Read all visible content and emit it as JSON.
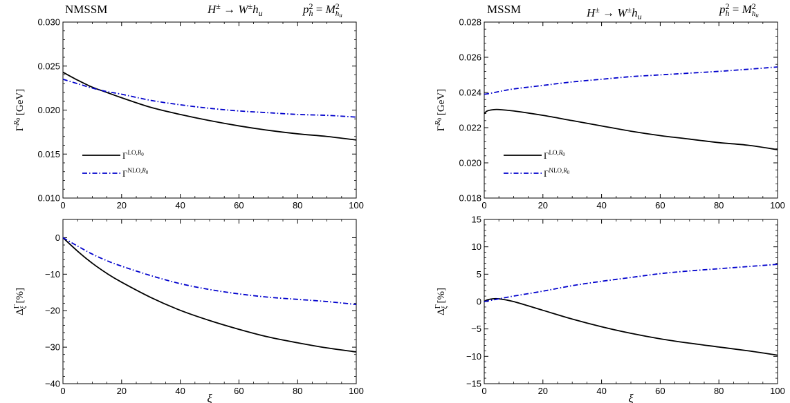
{
  "chart_data": [
    {
      "type": "line",
      "panel": "top-left",
      "title_left": "NMSSM",
      "title_center": "H^{±} → W^{±}h_u",
      "title_right": "p_h^2 = M_{h_u}^2",
      "ylabel": "Γ^{R_0} [GeV]",
      "xlabel": "",
      "xlim": [
        0,
        100
      ],
      "ylim": [
        0.01,
        0.03
      ],
      "xticks": [
        "0",
        "20",
        "40",
        "60",
        "80",
        "100"
      ],
      "yticks": [
        "0.010",
        "0.015",
        "0.020",
        "0.025",
        "0.030"
      ],
      "legend_position": "bottom-left",
      "x": [
        0,
        5,
        10,
        15,
        20,
        30,
        40,
        50,
        60,
        70,
        80,
        90,
        100
      ],
      "series": [
        {
          "name": "Γ^{LO,R_0}",
          "color": "#000000",
          "dash": "solid",
          "values": [
            0.0243,
            0.0234,
            0.0226,
            0.022,
            0.0214,
            0.0203,
            0.0195,
            0.0188,
            0.0182,
            0.0177,
            0.0173,
            0.017,
            0.0166
          ]
        },
        {
          "name": "Γ^{NLO,R_0}",
          "color": "#0000cc",
          "dash": "dashdot",
          "values": [
            0.0235,
            0.023,
            0.0225,
            0.0221,
            0.0218,
            0.0211,
            0.0206,
            0.0202,
            0.0199,
            0.0197,
            0.0195,
            0.0194,
            0.0192
          ]
        }
      ]
    },
    {
      "type": "line",
      "panel": "top-right",
      "title_left": "MSSM",
      "title_center": "H^{±} → W^{±}h_u",
      "title_right": "p_h^2 = M_{h_u}^2",
      "ylabel": "Γ^{R_0} [GeV]",
      "xlabel": "",
      "xlim": [
        0,
        100
      ],
      "ylim": [
        0.018,
        0.028
      ],
      "xticks": [
        "0",
        "20",
        "40",
        "60",
        "80",
        "100"
      ],
      "yticks": [
        "0.018",
        "0.020",
        "0.022",
        "0.024",
        "0.026",
        "0.028"
      ],
      "legend_position": "bottom-left",
      "x": [
        0,
        1,
        3,
        5,
        10,
        20,
        30,
        40,
        50,
        60,
        70,
        80,
        90,
        100
      ],
      "series": [
        {
          "name": "Γ^{LO,R_0}",
          "color": "#000000",
          "dash": "solid",
          "values": [
            0.0228,
            0.02295,
            0.02302,
            0.02303,
            0.02295,
            0.0227,
            0.0224,
            0.0221,
            0.0218,
            0.02155,
            0.02135,
            0.02115,
            0.021,
            0.02075
          ]
        },
        {
          "name": "Γ^{NLO,R_0}",
          "color": "#0000cc",
          "dash": "dashdot",
          "values": [
            0.0239,
            0.02392,
            0.02398,
            0.02405,
            0.0242,
            0.0244,
            0.0246,
            0.02475,
            0.0249,
            0.025,
            0.0251,
            0.0252,
            0.02532,
            0.02545
          ]
        }
      ]
    },
    {
      "type": "line",
      "panel": "bottom-left",
      "ylabel": "Δ_ξ^Γ [%]",
      "xlabel": "ξ",
      "xlim": [
        0,
        100
      ],
      "ylim": [
        -40,
        5
      ],
      "xticks": [
        "0",
        "20",
        "40",
        "60",
        "80",
        "100"
      ],
      "yticks": [
        "−40",
        "−30",
        "−20",
        "−10",
        "0"
      ],
      "ytick_values": [
        -40,
        -30,
        -20,
        -10,
        0
      ],
      "x": [
        0,
        5,
        10,
        15,
        20,
        30,
        40,
        50,
        60,
        70,
        80,
        90,
        100
      ],
      "series": [
        {
          "name": "LO",
          "color": "#000000",
          "dash": "solid",
          "values": [
            0,
            -3.7,
            -7.0,
            -9.8,
            -12.2,
            -16.4,
            -19.9,
            -22.7,
            -25.1,
            -27.2,
            -28.8,
            -30.2,
            -31.3
          ]
        },
        {
          "name": "NLO",
          "color": "#0000cc",
          "dash": "dashdot",
          "values": [
            0,
            -2.3,
            -4.5,
            -6.3,
            -7.8,
            -10.4,
            -12.6,
            -14.2,
            -15.4,
            -16.3,
            -16.9,
            -17.5,
            -18.3
          ]
        }
      ]
    },
    {
      "type": "line",
      "panel": "bottom-right",
      "ylabel": "Δ_ξ^Γ [%]",
      "xlabel": "ξ",
      "xlim": [
        0,
        100
      ],
      "ylim": [
        -15,
        15
      ],
      "xticks": [
        "0",
        "20",
        "40",
        "60",
        "80",
        "100"
      ],
      "yticks": [
        "−15",
        "−10",
        "−5",
        "0",
        "5",
        "10",
        "15"
      ],
      "ytick_values": [
        -15,
        -10,
        -5,
        0,
        5,
        10,
        15
      ],
      "x": [
        0,
        1,
        3,
        5,
        10,
        20,
        30,
        40,
        50,
        60,
        70,
        80,
        90,
        100
      ],
      "series": [
        {
          "name": "LO",
          "color": "#000000",
          "dash": "solid",
          "values": [
            0,
            0.3,
            0.5,
            0.5,
            0.0,
            -1.6,
            -3.2,
            -4.6,
            -5.8,
            -6.8,
            -7.6,
            -8.3,
            -9.0,
            -9.8
          ]
        },
        {
          "name": "NLO",
          "color": "#0000cc",
          "dash": "dashdot",
          "values": [
            0,
            0.1,
            0.3,
            0.5,
            1.0,
            1.9,
            2.9,
            3.7,
            4.4,
            5.1,
            5.6,
            6.0,
            6.4,
            6.8
          ]
        }
      ]
    }
  ]
}
